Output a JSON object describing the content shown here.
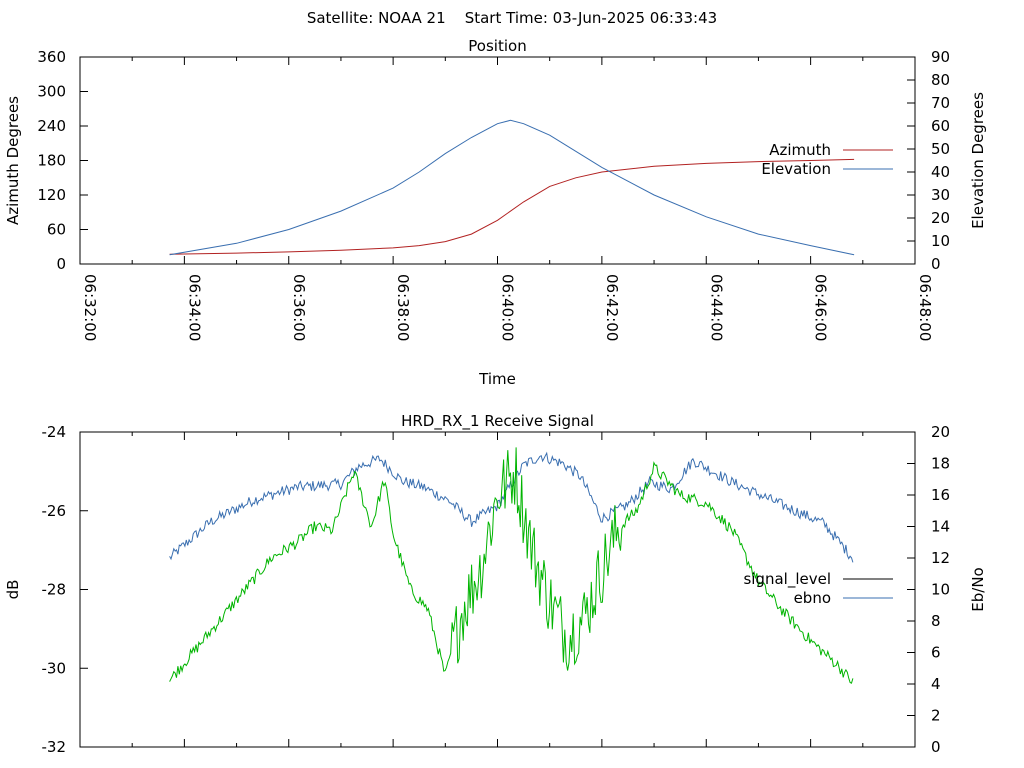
{
  "header": {
    "title": "Satellite: NOAA 21    Start Time: 03-Jun-2025 06:33:43"
  },
  "chart_data": [
    {
      "type": "line",
      "title": "Position",
      "xlabel": "Time",
      "ylabel": "Azimuth Degrees",
      "y2label": "Elevation Degrees",
      "xlim": [
        "06:32:00",
        "06:48:00"
      ],
      "x_tick_labels": [
        "06:32:00",
        "06:34:00",
        "06:36:00",
        "06:38:00",
        "06:40:00",
        "06:42:00",
        "06:44:00",
        "06:46:00",
        "06:48:00"
      ],
      "ylim": [
        0,
        360
      ],
      "y_tick_labels": [
        "0",
        "60",
        "120",
        "180",
        "240",
        "300",
        "360"
      ],
      "y2lim": [
        0,
        90
      ],
      "y2_tick_labels": [
        "0",
        "10",
        "20",
        "30",
        "40",
        "50",
        "60",
        "70",
        "80",
        "90"
      ],
      "legend_position": "right",
      "series": [
        {
          "name": "Azimuth",
          "axis": "left",
          "color": "#b22222",
          "x": [
            "06:33:43",
            "06:35:00",
            "06:36:00",
            "06:37:00",
            "06:38:00",
            "06:38:30",
            "06:39:00",
            "06:39:30",
            "06:40:00",
            "06:40:30",
            "06:41:00",
            "06:41:30",
            "06:42:00",
            "06:43:00",
            "06:44:00",
            "06:45:00",
            "06:46:00",
            "06:46:50"
          ],
          "y": [
            17,
            19,
            21,
            24,
            28,
            32,
            39,
            52,
            76,
            108,
            135,
            150,
            160,
            170,
            175,
            178,
            180,
            182
          ]
        },
        {
          "name": "Elevation",
          "axis": "right",
          "color": "#3a6fb0",
          "x": [
            "06:33:43",
            "06:35:00",
            "06:36:00",
            "06:37:00",
            "06:38:00",
            "06:38:30",
            "06:39:00",
            "06:39:30",
            "06:40:00",
            "06:40:15",
            "06:40:30",
            "06:41:00",
            "06:41:30",
            "06:42:00",
            "06:43:00",
            "06:44:00",
            "06:45:00",
            "06:46:00",
            "06:46:50"
          ],
          "y": [
            4,
            9,
            15,
            23,
            33,
            40,
            48,
            55,
            61,
            62.5,
            61,
            56,
            49,
            42,
            30,
            20.5,
            13,
            8,
            4
          ]
        }
      ]
    },
    {
      "type": "line",
      "title": "HRD_RX_1 Receive Signal",
      "xlabel": "",
      "ylabel": "dB",
      "y2label": "Eb/No",
      "xlim": [
        "06:32:00",
        "06:48:00"
      ],
      "ylim": [
        -32,
        -24
      ],
      "y_tick_labels": [
        "-32",
        "-30",
        "-28",
        "-26",
        "-24"
      ],
      "y2lim": [
        0,
        20
      ],
      "y2_tick_labels": [
        "0",
        "2",
        "4",
        "6",
        "8",
        "10",
        "12",
        "14",
        "16",
        "18",
        "20"
      ],
      "legend_position": "right",
      "series": [
        {
          "name": "signal_level",
          "axis": "left",
          "color": "#000000",
          "x": [],
          "y": []
        },
        {
          "name": "ebno",
          "axis": "right",
          "color": "#3a6fb0",
          "x": [
            "06:33:43",
            "06:34:30",
            "06:35:20",
            "06:36:10",
            "06:37:00",
            "06:37:20",
            "06:37:45",
            "06:38:10",
            "06:38:35",
            "06:39:05",
            "06:39:30",
            "06:40:00",
            "06:40:30",
            "06:40:50",
            "06:41:15",
            "06:41:35",
            "06:42:00",
            "06:42:30",
            "06:42:55",
            "06:43:20",
            "06:43:45",
            "06:44:30",
            "06:45:30",
            "06:46:15",
            "06:46:50"
          ],
          "y": [
            12,
            14.3,
            15.7,
            16.5,
            16.7,
            17.8,
            18.3,
            16.9,
            16.5,
            15.6,
            14.3,
            15.3,
            17.9,
            18.5,
            18,
            17.2,
            14.5,
            15.4,
            16.8,
            16.4,
            18.2,
            16.8,
            15.3,
            14.2,
            11.9
          ]
        },
        {
          "name": "",
          "axis": "left",
          "color": "#00b400",
          "x": [
            "06:33:43",
            "06:34:10",
            "06:34:40",
            "06:35:10",
            "06:35:40",
            "06:36:10",
            "06:36:30",
            "06:36:50",
            "06:37:15",
            "06:37:35",
            "06:37:50",
            "06:38:00",
            "06:38:20",
            "06:38:40",
            "06:39:00",
            "06:39:20",
            "06:39:40",
            "06:40:00",
            "06:40:20",
            "06:40:40",
            "06:41:00",
            "06:41:20",
            "06:41:40",
            "06:42:00",
            "06:42:20",
            "06:42:40",
            "06:43:00",
            "06:43:30",
            "06:44:00",
            "06:44:30",
            "06:45:00",
            "06:45:30",
            "06:46:00",
            "06:46:30",
            "06:46:50"
          ],
          "y": [
            -30.3,
            -29.6,
            -28.8,
            -28,
            -27.2,
            -26.8,
            -26.4,
            -26.5,
            -25,
            -26.4,
            -25.2,
            -26.6,
            -28,
            -28.5,
            -30.2,
            -28.5,
            -27.5,
            -25.6,
            -25,
            -27,
            -28.3,
            -29.2,
            -28.7,
            -27.5,
            -26.4,
            -26,
            -24.9,
            -25.6,
            -25.8,
            -26.5,
            -27.8,
            -28.6,
            -29.3,
            -29.9,
            -30.4
          ]
        }
      ]
    }
  ]
}
